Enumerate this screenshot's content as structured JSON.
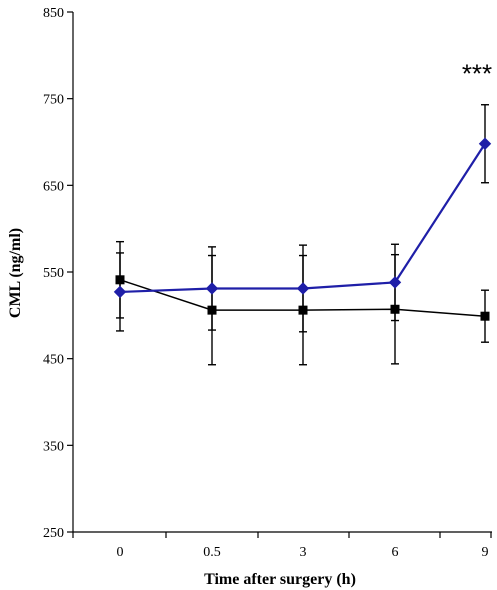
{
  "chart_data": {
    "type": "line",
    "title": "",
    "xlabel": "Time after surgery (h)",
    "ylabel": "CML (ng/ml)",
    "categories": [
      "0",
      "0.5",
      "3",
      "6",
      "9"
    ],
    "ylim": [
      250,
      850
    ],
    "yticks": [
      250,
      350,
      450,
      550,
      650,
      750,
      850
    ],
    "grid": false,
    "legend": "none",
    "series": [
      {
        "color": "#1f1fa8",
        "marker": "diamond",
        "values": [
          527,
          531,
          531,
          538,
          698
        ],
        "error": [
          45,
          48,
          50,
          44,
          45
        ]
      },
      {
        "color": "#000000",
        "marker": "square",
        "values": [
          541,
          506,
          506,
          507,
          499
        ],
        "error": [
          44,
          63,
          63,
          63,
          30
        ]
      }
    ],
    "annotations": [
      {
        "text": "***",
        "category_index": 4,
        "y": 780
      }
    ]
  }
}
